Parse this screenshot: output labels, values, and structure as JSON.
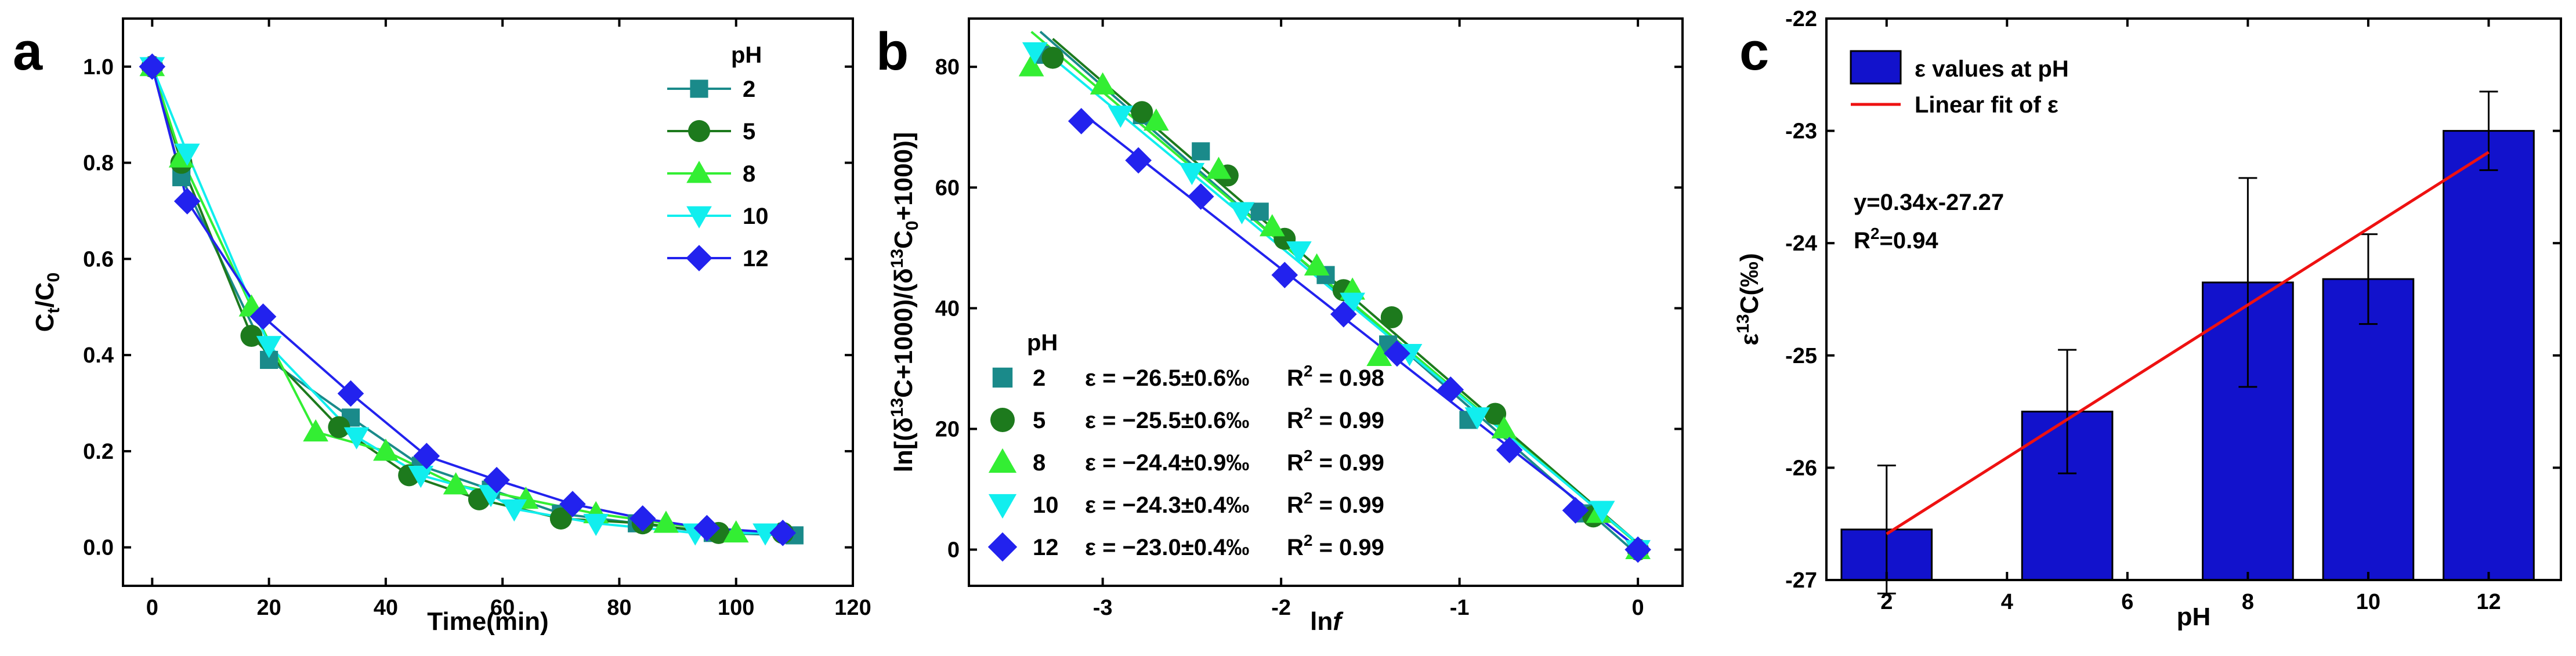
{
  "colors": {
    "teal": "#1a8a8a",
    "green": "#1d7a1d",
    "lightgreen": "#33ee33",
    "cyan": "#11eeee",
    "blue": "#2222ee",
    "bar": "#1212cc",
    "fit": "#ee1111",
    "axis": "#000000"
  },
  "chart_data": [
    {
      "panel": "a",
      "type": "line",
      "xlabel": "Time(min)",
      "ylabel_main": "C",
      "ylabel_sub1": "t",
      "ylabel_mid": "/C",
      "ylabel_sub2": "0",
      "xlim": [
        -5,
        120
      ],
      "ylim": [
        -0.08,
        1.1
      ],
      "xticks": [
        0,
        20,
        40,
        60,
        80,
        100,
        120
      ],
      "xtick_labels": [
        "0",
        "20",
        "40",
        "60",
        "80",
        "100",
        "120"
      ],
      "yticks": [
        0.0,
        0.2,
        0.4,
        0.6,
        0.8,
        1.0
      ],
      "ytick_labels": [
        "0.0",
        "0.2",
        "0.4",
        "0.6",
        "0.8",
        "1.0"
      ],
      "legend_title": "pH",
      "legend_position": "top-right",
      "series": [
        {
          "name": "2",
          "color": "teal",
          "marker": "square",
          "x": [
            0,
            5,
            20,
            34,
            46,
            58,
            70,
            83,
            96,
            110
          ],
          "y": [
            1.0,
            0.77,
            0.39,
            0.27,
            0.17,
            0.12,
            0.07,
            0.05,
            0.03,
            0.025
          ]
        },
        {
          "name": "5",
          "color": "green",
          "marker": "circle",
          "x": [
            0,
            5,
            17,
            32,
            44,
            56,
            70,
            84,
            97,
            108
          ],
          "y": [
            1.0,
            0.8,
            0.44,
            0.25,
            0.15,
            0.1,
            0.06,
            0.05,
            0.03,
            0.03
          ]
        },
        {
          "name": "8",
          "color": "lightgreen",
          "marker": "triangle-up",
          "x": [
            0,
            5,
            17,
            28,
            40,
            52,
            64,
            76,
            88,
            100
          ],
          "y": [
            1.0,
            0.81,
            0.5,
            0.24,
            0.2,
            0.13,
            0.1,
            0.07,
            0.05,
            0.03
          ]
        },
        {
          "name": "10",
          "color": "cyan",
          "marker": "triangle-down",
          "x": [
            0,
            6,
            20,
            35,
            46,
            58,
            62,
            76,
            93,
            105
          ],
          "y": [
            1.0,
            0.82,
            0.42,
            0.23,
            0.15,
            0.11,
            0.08,
            0.05,
            0.03,
            0.03
          ]
        },
        {
          "name": "12",
          "color": "blue",
          "marker": "diamond",
          "x": [
            0,
            6,
            19,
            34,
            47,
            59,
            72,
            84,
            95,
            108
          ],
          "y": [
            1.0,
            0.72,
            0.48,
            0.32,
            0.19,
            0.14,
            0.09,
            0.06,
            0.04,
            0.03
          ]
        }
      ]
    },
    {
      "panel": "b",
      "type": "scatter",
      "xlabel_main": "ln",
      "xlabel_italic": "f",
      "ylabel_parts": [
        "ln[(δ",
        "13",
        "C+1000)/(δ",
        "13",
        "C",
        "0",
        "+1000)]"
      ],
      "xlim": [
        -3.75,
        0.25
      ],
      "ylim": [
        -6,
        88
      ],
      "xticks": [
        -3,
        -2,
        -1,
        0
      ],
      "xtick_labels": [
        "-3",
        "-2",
        "-1",
        "0"
      ],
      "yticks": [
        0,
        20,
        40,
        60,
        80
      ],
      "ytick_labels": [
        "0",
        "20",
        "40",
        "60",
        "80"
      ],
      "legend_title": "pH",
      "legend_position": "bottom-left",
      "series": [
        {
          "name": "2",
          "color": "teal",
          "marker": "square",
          "epsilon": "ε = −26.5±0.6‰",
          "r2_label": "R",
          "r2_sup": "2",
          "r2_value": " = 0.98",
          "x": [
            -3.35,
            -2.78,
            -2.45,
            -2.12,
            -1.75,
            -1.4,
            -0.95,
            -0.3,
            0
          ],
          "y": [
            82,
            72,
            66,
            56,
            45.5,
            34,
            21.5,
            6,
            0
          ]
        },
        {
          "name": "5",
          "color": "green",
          "marker": "circle",
          "epsilon": "ε = −25.5±0.6‰",
          "r2_label": "R",
          "r2_sup": "2",
          "r2_value": " = 0.99",
          "x": [
            -3.28,
            -2.78,
            -2.3,
            -1.98,
            -1.65,
            -1.38,
            -0.8,
            -0.25,
            0
          ],
          "y": [
            81.5,
            72.5,
            62,
            51.5,
            43,
            38.5,
            22.5,
            5.5,
            0
          ]
        },
        {
          "name": "8",
          "color": "lightgreen",
          "marker": "triangle-up",
          "epsilon": "ε = −24.4±0.9‰",
          "r2_label": "R",
          "r2_sup": "2",
          "r2_value": " = 0.99",
          "x": [
            -3.4,
            -3.0,
            -2.7,
            -2.35,
            -2.05,
            -1.8,
            -1.6,
            -1.45,
            -0.75,
            -0.22,
            0
          ],
          "y": [
            80,
            77,
            71,
            63,
            53.5,
            47,
            43,
            32,
            20,
            6,
            0
          ]
        },
        {
          "name": "10",
          "color": "cyan",
          "marker": "triangle-down",
          "epsilon": "ε = −24.3±0.4‰",
          "r2_label": "R",
          "r2_sup": "2",
          "r2_value": " = 0.99",
          "x": [
            -3.38,
            -2.9,
            -2.5,
            -2.22,
            -1.9,
            -1.6,
            -1.28,
            -0.9,
            -0.2,
            0
          ],
          "y": [
            82.5,
            72,
            62.5,
            56,
            49.5,
            41,
            32.5,
            22,
            6.5,
            0
          ]
        },
        {
          "name": "12",
          "color": "blue",
          "marker": "diamond",
          "epsilon": "ε = −23.0±0.4‰",
          "r2_label": "R",
          "r2_sup": "2",
          "r2_value": " = 0.99",
          "x": [
            -3.12,
            -2.8,
            -2.45,
            -1.98,
            -1.65,
            -1.35,
            -1.05,
            -0.72,
            -0.35,
            0
          ],
          "y": [
            71,
            64.5,
            58.5,
            45.5,
            39,
            32.5,
            26.5,
            16.5,
            6.5,
            0
          ]
        }
      ]
    },
    {
      "panel": "c",
      "type": "bar",
      "xlabel": "pH",
      "ylabel_parts": [
        "ε",
        "13",
        "C(‰)"
      ],
      "xlim": [
        1,
        13.2
      ],
      "ylim": [
        -27,
        -22
      ],
      "xticks": [
        2,
        4,
        6,
        8,
        10,
        12
      ],
      "xtick_labels": [
        "2",
        "4",
        "6",
        "8",
        "10",
        "12"
      ],
      "yticks": [
        -27,
        -26,
        -25,
        -24,
        -23,
        -22
      ],
      "ytick_labels": [
        "-27",
        "-26",
        "-25",
        "-24",
        "-23",
        "-22"
      ],
      "bar_width": 1.5,
      "categories": [
        2,
        5,
        8,
        10,
        12
      ],
      "values": [
        -26.55,
        -25.5,
        -24.35,
        -24.32,
        -23.0
      ],
      "errors": [
        0.57,
        0.55,
        0.93,
        0.4,
        0.35
      ],
      "series_label": "ε values at pH",
      "fit_label": "Linear fit of ε",
      "fit": {
        "slope": 0.34,
        "intercept": -27.27,
        "x_range": [
          2,
          12
        ]
      },
      "equation": "y=0.34x-27.27",
      "r2_label": "R",
      "r2_sup": "2",
      "r2_value": "=0.94",
      "legend_position": "top-left"
    }
  ]
}
